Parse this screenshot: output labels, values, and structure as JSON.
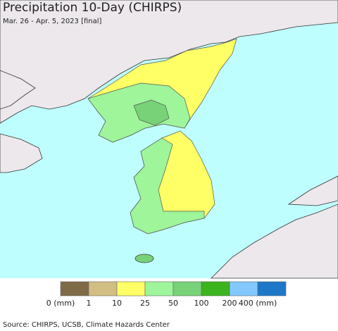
{
  "header": {
    "title": "Precipitation 10-Day (CHIRPS)",
    "subtitle": "Mar. 26 - Apr. 5, 2023 [final]"
  },
  "legend": {
    "items": [
      {
        "label": "0 (mm)",
        "color": "#7f6a47"
      },
      {
        "label": "1",
        "color": "#d2be82"
      },
      {
        "label": "10",
        "color": "#ffff66"
      },
      {
        "label": "25",
        "color": "#9ef59a"
      },
      {
        "label": "50",
        "color": "#78d278"
      },
      {
        "label": "100",
        "color": "#3cb41e"
      },
      {
        "label": "200",
        "color": "#82c8ff"
      },
      {
        "label": "400 (mm)",
        "color": "#1e78c8"
      }
    ]
  },
  "footer": {
    "source": "Source: CHIRPS, UCSB, Climate Hazards Center"
  }
}
